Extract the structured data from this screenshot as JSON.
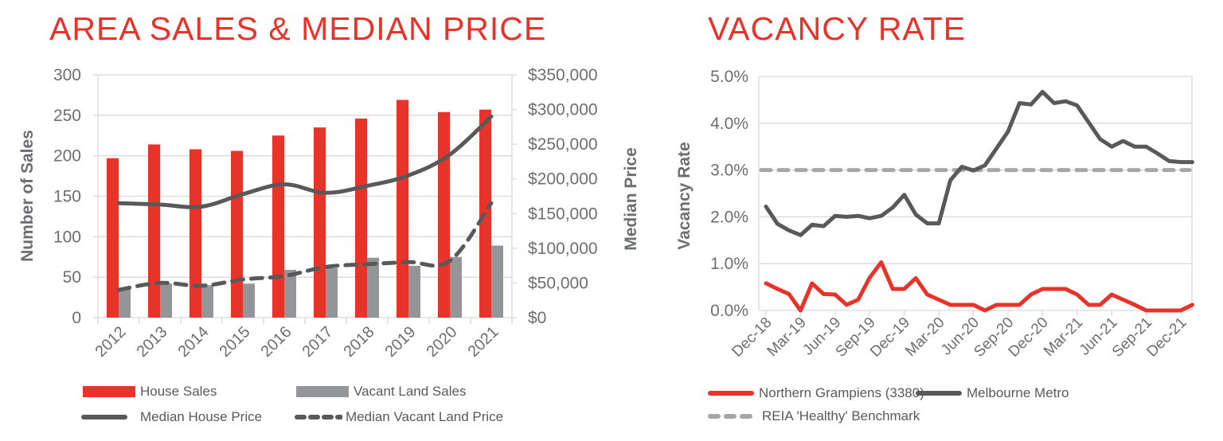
{
  "left_panel": {
    "title": "AREA SALES & MEDIAN PRICE",
    "y_left_label": "Number of Sales",
    "y_right_label": "Median Price",
    "y_left_ticks": [
      "300",
      "250",
      "200",
      "150",
      "100",
      "50",
      "0"
    ],
    "y_right_ticks": [
      "$350,000",
      "$300,000",
      "$250,000",
      "$200,000",
      "$150,000",
      "$100,000",
      "$50,000",
      "$0"
    ],
    "legend": {
      "house_sales": "House Sales",
      "vacant_land_sales": "Vacant Land Sales",
      "median_house_price": "Median House Price",
      "median_vacant_land_price": "Median Vacant Land Price"
    }
  },
  "right_panel": {
    "title": "VACANCY RATE",
    "y_label": "Vacancy Rate",
    "y_ticks": [
      "5.0%",
      "4.0%",
      "3.0%",
      "2.0%",
      "1.0%",
      "0.0%"
    ],
    "x_ticks": [
      "Dec-18",
      "Mar-19",
      "Jun-19",
      "Sep-19",
      "Dec-19",
      "Mar-20",
      "Jun-20",
      "Sep-20",
      "Dec-20",
      "Mar-21",
      "Jun-21",
      "Sep-21",
      "Dec-21"
    ],
    "legend": {
      "northern_grampiens": "Northern Grampiens (3380)",
      "melbourne_metro": "Melbourne Metro",
      "benchmark": "REIA 'Healthy' Benchmark"
    }
  },
  "colors": {
    "title_red": "#e8332a",
    "house_sales": "#e8332a",
    "vacant_land_sales": "#939598",
    "median_line": "#595959",
    "benchmark": "#a6a6a8",
    "grid": "#d9d9d9",
    "axis_text": "#6d6e71"
  },
  "chart_data": [
    {
      "type": "bar",
      "title": "AREA SALES & MEDIAN PRICE",
      "categories": [
        "2012",
        "2013",
        "2014",
        "2015",
        "2016",
        "2017",
        "2018",
        "2019",
        "2020",
        "2021"
      ],
      "xlabel": "",
      "ylabel": "Number of Sales",
      "ylabel_right": "Median Price",
      "ylim": [
        0,
        300
      ],
      "ylim_right": [
        0,
        350000
      ],
      "grid": true,
      "legend_position": "bottom",
      "series": [
        {
          "name": "House Sales",
          "type": "bar",
          "axis": "left",
          "values": [
            197,
            214,
            208,
            206,
            225,
            235,
            246,
            269,
            254,
            257
          ]
        },
        {
          "name": "Vacant Land Sales",
          "type": "bar",
          "axis": "left",
          "values": [
            37,
            42,
            40,
            42,
            59,
            61,
            74,
            64,
            75,
            89
          ]
        },
        {
          "name": "Median House Price",
          "type": "line",
          "axis": "right",
          "values": [
            165000,
            163000,
            160000,
            178000,
            192000,
            180000,
            190000,
            205000,
            235000,
            290000
          ]
        },
        {
          "name": "Median Vacant Land Price",
          "type": "line",
          "style": "dashed",
          "axis": "right",
          "values": [
            40000,
            50000,
            46000,
            55000,
            60000,
            73000,
            77000,
            80000,
            82000,
            165000
          ]
        }
      ]
    },
    {
      "type": "line",
      "title": "VACANCY RATE",
      "xlabel": "",
      "ylabel": "Vacancy Rate",
      "ylim": [
        0,
        5.0
      ],
      "y_unit": "%",
      "grid": true,
      "legend_position": "bottom",
      "x_tick_labels": [
        "Dec-18",
        "Mar-19",
        "Jun-19",
        "Sep-19",
        "Dec-19",
        "Mar-20",
        "Jun-20",
        "Sep-20",
        "Dec-20",
        "Mar-21",
        "Jun-21",
        "Sep-21",
        "Dec-21"
      ],
      "x": [
        "Dec-18",
        "Jan-19",
        "Feb-19",
        "Mar-19",
        "Apr-19",
        "May-19",
        "Jun-19",
        "Jul-19",
        "Aug-19",
        "Sep-19",
        "Oct-19",
        "Nov-19",
        "Dec-19",
        "Jan-20",
        "Feb-20",
        "Mar-20",
        "Apr-20",
        "May-20",
        "Jun-20",
        "Jul-20",
        "Aug-20",
        "Sep-20",
        "Oct-20",
        "Nov-20",
        "Dec-20",
        "Jan-21",
        "Feb-21",
        "Mar-21",
        "Apr-21",
        "May-21",
        "Jun-21",
        "Jul-21",
        "Aug-21",
        "Sep-21",
        "Oct-21",
        "Nov-21",
        "Dec-21",
        "Jan-22"
      ],
      "series": [
        {
          "name": "Northern Grampiens (3380)",
          "values": [
            0.58,
            0.46,
            0.35,
            0.0,
            0.58,
            0.35,
            0.34,
            0.12,
            0.23,
            0.7,
            1.03,
            0.46,
            0.46,
            0.69,
            0.34,
            0.23,
            0.12,
            0.12,
            0.12,
            0.0,
            0.12,
            0.12,
            0.12,
            0.34,
            0.46,
            0.46,
            0.46,
            0.34,
            0.12,
            0.12,
            0.34,
            0.23,
            0.12,
            0.0,
            0.0,
            0.0,
            0.0,
            0.12
          ]
        },
        {
          "name": "Melbourne Metro",
          "values": [
            2.22,
            1.85,
            1.71,
            1.61,
            1.83,
            1.8,
            2.02,
            2.0,
            2.02,
            1.97,
            2.02,
            2.2,
            2.47,
            2.05,
            1.86,
            1.86,
            2.78,
            3.07,
            2.99,
            3.1,
            3.46,
            3.82,
            4.43,
            4.4,
            4.67,
            4.43,
            4.47,
            4.38,
            4.02,
            3.66,
            3.5,
            3.62,
            3.5,
            3.5,
            3.35,
            3.19,
            3.17,
            3.17
          ]
        },
        {
          "name": "REIA 'Healthy' Benchmark",
          "style": "dashed",
          "values": [
            3.0,
            3.0,
            3.0,
            3.0,
            3.0,
            3.0,
            3.0,
            3.0,
            3.0,
            3.0,
            3.0,
            3.0,
            3.0,
            3.0,
            3.0,
            3.0,
            3.0,
            3.0,
            3.0,
            3.0,
            3.0,
            3.0,
            3.0,
            3.0,
            3.0,
            3.0,
            3.0,
            3.0,
            3.0,
            3.0,
            3.0,
            3.0,
            3.0,
            3.0,
            3.0,
            3.0,
            3.0,
            3.0
          ]
        }
      ]
    }
  ]
}
